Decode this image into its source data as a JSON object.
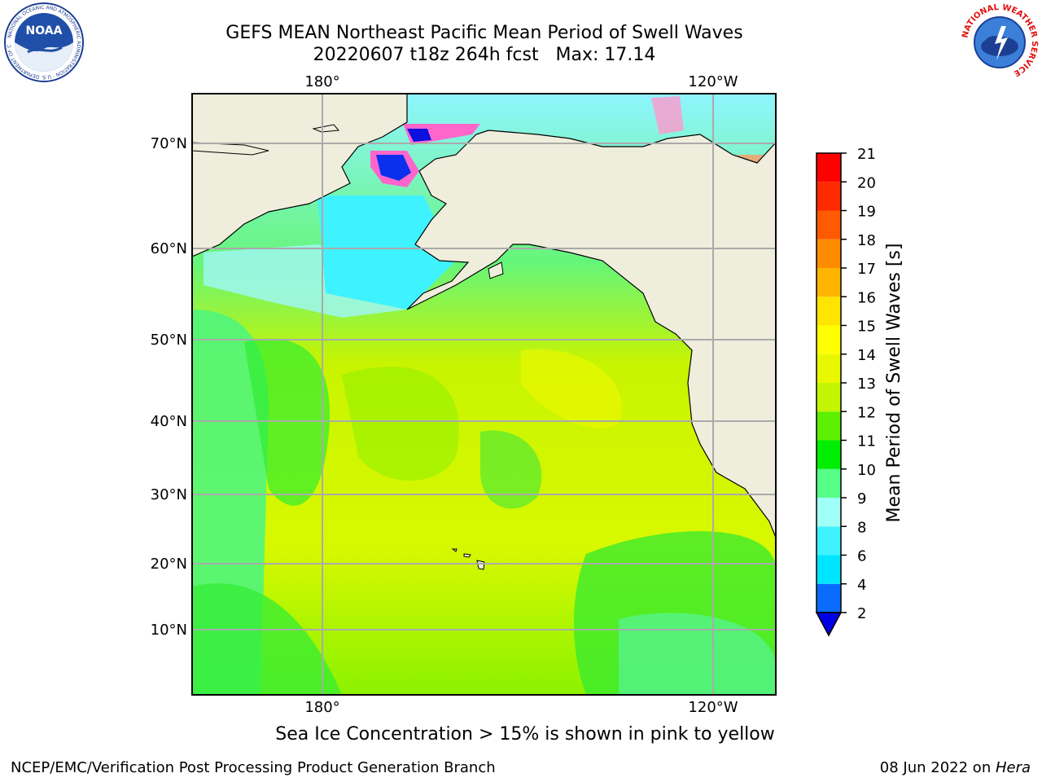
{
  "title": {
    "line1": "GEFS MEAN Northeast Pacific Mean Period of Swell Waves",
    "line2": "20220607 t18z 264h fcst   Max: 17.14"
  },
  "map": {
    "lon_labels_top": [
      "180°",
      "120°W"
    ],
    "lon_labels_bottom": [
      "180°",
      "120°W"
    ],
    "lat_labels": [
      "70°N",
      "60°N",
      "50°N",
      "40°N",
      "30°N",
      "20°N",
      "10°N"
    ]
  },
  "colorbar": {
    "label": "Mean Period of Swell Waves [s]",
    "ticks": [
      "2",
      "4",
      "6",
      "8",
      "9",
      "10",
      "11",
      "12",
      "13",
      "14",
      "15",
      "16",
      "17",
      "18",
      "19",
      "20",
      "21"
    ],
    "colors": [
      "#0000e6",
      "#0a6cff",
      "#00e5ff",
      "#3ff2ff",
      "#a0fff6",
      "#55ff88",
      "#00ee00",
      "#5cf000",
      "#c4f500",
      "#e8f800",
      "#ffff00",
      "#ffe400",
      "#ffb400",
      "#ff8c00",
      "#ff5a00",
      "#ff2a00",
      "#ff0000"
    ]
  },
  "note": "Sea Ice Concentration > 15% is shown in pink to yellow",
  "footer": {
    "left": "NCEP/EMC/Verification Post Processing Product Generation Branch",
    "right_date": "08 Jun 2022 on ",
    "right_host": "Hera"
  },
  "logos": {
    "noaa": "NOAA",
    "noaa_ring": "NATIONAL OCEANIC AND ATMOSPHERIC ADMINISTRATION · U.S. DEPARTMENT OF COMMERCE",
    "nws_ring": "NATIONAL WEATHER SERVICE"
  }
}
